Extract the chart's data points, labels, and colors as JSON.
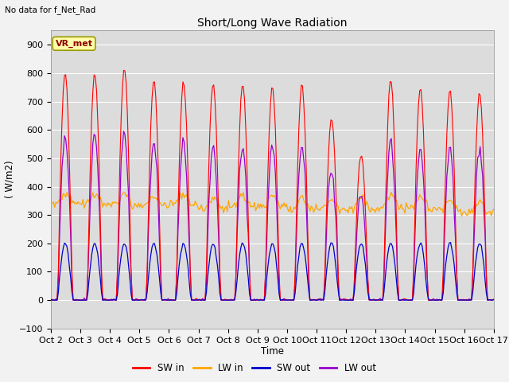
{
  "title": "Short/Long Wave Radiation",
  "subtitle": "No data for f_Net_Rad",
  "ylabel": "( W/m2)",
  "xlabel": "Time",
  "ylim": [
    -100,
    950
  ],
  "yticks": [
    -100,
    0,
    100,
    200,
    300,
    400,
    500,
    600,
    700,
    800,
    900
  ],
  "xtick_labels": [
    "Oct 2",
    "Oct 3",
    "Oct 4",
    "Oct 5",
    "Oct 6",
    "Oct 7",
    "Oct 8",
    "Oct 9",
    "Oct 10",
    "Oct 11",
    "Oct 12",
    "Oct 13",
    "Oct 14",
    "Oct 15",
    "Oct 16",
    "Oct 17"
  ],
  "legend_labels": [
    "SW in",
    "LW in",
    "SW out",
    "LW out"
  ],
  "legend_colors": [
    "#ff0000",
    "#ffa500",
    "#0000cd",
    "#9900cc"
  ],
  "bg_color": "#dcdcdc",
  "grid_color": "#ffffff",
  "site_label": "VR_met",
  "n_days": 15
}
